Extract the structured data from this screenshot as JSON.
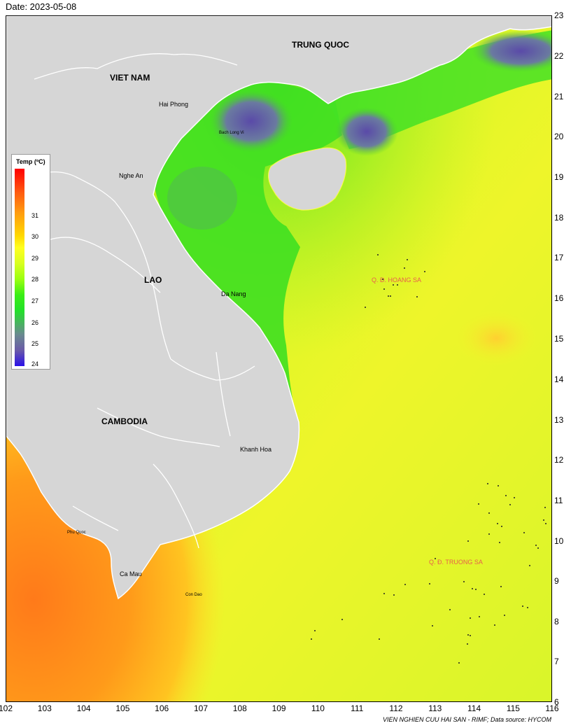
{
  "date_label": "Date: 2023-05-08",
  "legend": {
    "title": "Temp (ºC)",
    "ticks": [
      "31",
      "30",
      "29",
      "28",
      "27",
      "26",
      "25",
      "24"
    ]
  },
  "axes": {
    "x_ticks": [
      "102",
      "103",
      "104",
      "105",
      "106",
      "107",
      "108",
      "109",
      "110",
      "111",
      "112",
      "113",
      "114",
      "115",
      "116"
    ],
    "y_ticks": [
      "23",
      "22",
      "21",
      "20",
      "19",
      "18",
      "17",
      "16",
      "15",
      "14",
      "13",
      "12",
      "11",
      "10",
      "9",
      "8",
      "7",
      "6"
    ]
  },
  "labels": {
    "trung_quoc": "TRUNG QUOC",
    "viet_nam": "VIET NAM",
    "lao": "LAO",
    "cambodia": "CAMBODIA",
    "hai_phong": "Hai Phong",
    "bach_long_vi": "Bach Long Vi",
    "nghe_an": "Nghe An",
    "da_nang": "Da Nang",
    "khanh_hoa": "Khanh Hoa",
    "phu_quoc": "Phu Quoc",
    "ca_mau": "Ca Mau",
    "con_dao": "Con Dao",
    "hoang_sa": "Q. Đ. HOANG SA",
    "truong_sa": "Q. Đ. TRUONG SA"
  },
  "credit": "VIEN NGHIEN CUU HAI SAN - RIMF; Data source: HYCOM",
  "colors": {
    "land": "#d6d6d6",
    "border": "#ffffff",
    "sea_default": "#ddff22",
    "warm": "#ff9a1a",
    "cool": "#6a5aa8",
    "coastal_green": "#33e622"
  }
}
